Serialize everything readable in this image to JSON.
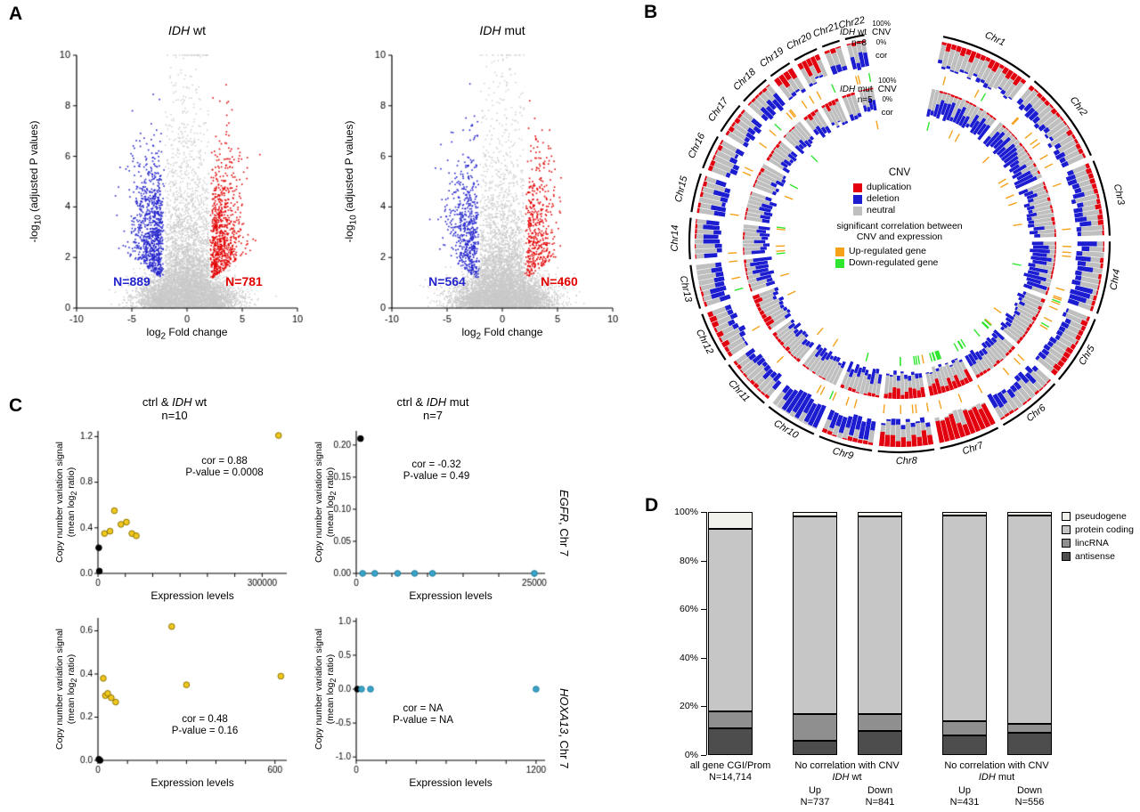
{
  "figure": {
    "panel_labels": {
      "a": "A",
      "b": "B",
      "c": "C",
      "d": "D"
    }
  },
  "colors": {
    "duplication_red": "#e3000e",
    "deletion_blue": "#1c1cd0",
    "neutral_gray": "#bfbfbf",
    "nonsig_gray": "#c9c9c9",
    "sig_blue": "#2323cc",
    "sig_red": "#e30000",
    "up_orange": "#f5a11a",
    "down_green": "#2ee62e",
    "ctrl_black": "#000000",
    "wt_yellow": "#f0c81e",
    "mut_cyan": "#3aa5c9"
  },
  "chart_data": [
    {
      "id": "volcano_idh_wt",
      "type": "scatter",
      "variant": "volcano",
      "title": {
        "gene": "IDH",
        "rest": " wt"
      },
      "xlabel": {
        "pre": "log",
        "sub": "2",
        "post": " Fold change"
      },
      "ylabel": {
        "pre": "-log",
        "sub": "10",
        "post": " (adjusted P values)"
      },
      "xlim": [
        -10,
        10
      ],
      "ylim": [
        0,
        10
      ],
      "xticks": [
        -10,
        -5,
        0,
        5,
        10
      ],
      "yticks": [
        0,
        2,
        4,
        6,
        8,
        10
      ],
      "n_background": 6500,
      "n_down": 889,
      "n_up": 781,
      "down_label": "N=889",
      "up_label": "N=781",
      "seed": 101
    },
    {
      "id": "volcano_idh_mut",
      "type": "scatter",
      "variant": "volcano",
      "title": {
        "gene": "IDH",
        "rest": " mut"
      },
      "xlabel": {
        "pre": "log",
        "sub": "2",
        "post": " Fold change"
      },
      "ylabel": {
        "pre": "-log",
        "sub": "10",
        "post": " (adjusted P values)"
      },
      "xlim": [
        -10,
        10
      ],
      "ylim": [
        0,
        10
      ],
      "xticks": [
        -10,
        -5,
        0,
        5,
        10
      ],
      "yticks": [
        0,
        2,
        4,
        6,
        8,
        10
      ],
      "n_background": 6500,
      "n_down": 564,
      "n_up": 460,
      "down_label": "N=564",
      "up_label": "N=460",
      "seed": 202
    },
    {
      "id": "circos_cnv",
      "type": "heatmap",
      "variant": "circos",
      "seed": 7,
      "tracks": [
        {
          "gene": "IDH",
          "rest": " wt",
          "n": "n=8",
          "scale_top": "100%",
          "cnv": "CNV",
          "scale_bottom": "0%",
          "cor": "cor"
        },
        {
          "gene": "IDH",
          "rest": " mut",
          "n": "n=5",
          "scale_top": "100%",
          "cnv": "CNV",
          "scale_bottom": "0%",
          "cor": "cor"
        }
      ],
      "chromosomes": [
        {
          "name": "Chr1",
          "size": 249,
          "wt_dup": 0.3,
          "wt_del": 0.1,
          "mut_dup": 0.05,
          "mut_del": 0.45
        },
        {
          "name": "Chr2",
          "size": 243,
          "wt_dup": 0.12,
          "wt_del": 0.25,
          "mut_dup": 0.05,
          "mut_del": 0.5
        },
        {
          "name": "Chr3",
          "size": 198,
          "wt_dup": 0.15,
          "wt_del": 0.3,
          "mut_dup": 0.08,
          "mut_del": 0.3
        },
        {
          "name": "Chr4",
          "size": 190,
          "wt_dup": 0.08,
          "wt_del": 0.55,
          "mut_dup": 0.05,
          "mut_del": 0.6
        },
        {
          "name": "Chr5",
          "size": 182,
          "wt_dup": 0.18,
          "wt_del": 0.2,
          "mut_dup": 0.1,
          "mut_del": 0.2
        },
        {
          "name": "Chr6",
          "size": 171,
          "wt_dup": 0.08,
          "wt_del": 0.35,
          "mut_dup": 0.08,
          "mut_del": 0.3
        },
        {
          "name": "Chr7",
          "size": 159,
          "wt_dup": 0.9,
          "wt_del": 0.02,
          "mut_dup": 0.45,
          "mut_del": 0.08
        },
        {
          "name": "Chr8",
          "size": 146,
          "wt_dup": 0.45,
          "wt_del": 0.15,
          "mut_dup": 0.3,
          "mut_del": 0.15
        },
        {
          "name": "Chr9",
          "size": 141,
          "wt_dup": 0.1,
          "wt_del": 0.55,
          "mut_dup": 0.08,
          "mut_del": 0.4
        },
        {
          "name": "Chr10",
          "size": 136,
          "wt_dup": 0.02,
          "wt_del": 0.9,
          "mut_dup": 0.05,
          "mut_del": 0.25
        },
        {
          "name": "Chr11",
          "size": 135,
          "wt_dup": 0.1,
          "wt_del": 0.3,
          "mut_dup": 0.1,
          "mut_del": 0.25
        },
        {
          "name": "Chr12",
          "size": 133,
          "wt_dup": 0.18,
          "wt_del": 0.18,
          "mut_dup": 0.2,
          "mut_del": 0.15
        },
        {
          "name": "Chr13",
          "size": 115,
          "wt_dup": 0.06,
          "wt_del": 0.4,
          "mut_dup": 0.05,
          "mut_del": 0.5
        },
        {
          "name": "Chr14",
          "size": 107,
          "wt_dup": 0.06,
          "wt_del": 0.45,
          "mut_dup": 0.05,
          "mut_del": 0.4
        },
        {
          "name": "Chr15",
          "size": 102,
          "wt_dup": 0.08,
          "wt_del": 0.35,
          "mut_dup": 0.05,
          "mut_del": 0.3
        },
        {
          "name": "Chr16",
          "size": 90,
          "wt_dup": 0.15,
          "wt_del": 0.2,
          "mut_dup": 0.1,
          "mut_del": 0.2
        },
        {
          "name": "Chr17",
          "size": 83,
          "wt_dup": 0.15,
          "wt_del": 0.3,
          "mut_dup": 0.08,
          "mut_del": 0.25
        },
        {
          "name": "Chr18",
          "size": 80,
          "wt_dup": 0.08,
          "wt_del": 0.35,
          "mut_dup": 0.05,
          "mut_del": 0.3
        },
        {
          "name": "Chr19",
          "size": 59,
          "wt_dup": 0.5,
          "wt_del": 0.15,
          "mut_dup": 0.15,
          "mut_del": 0.3
        },
        {
          "name": "Chr20",
          "size": 64,
          "wt_dup": 0.55,
          "wt_del": 0.08,
          "mut_dup": 0.2,
          "mut_del": 0.1
        },
        {
          "name": "Chr21",
          "size": 47,
          "wt_dup": 0.15,
          "wt_del": 0.25,
          "mut_dup": 0.08,
          "mut_del": 0.25
        },
        {
          "name": "Chr22",
          "size": 51,
          "wt_dup": 0.1,
          "wt_del": 0.45,
          "mut_dup": 0.05,
          "mut_del": 0.35
        }
      ],
      "cor_ticks": {
        "wt": {
          "orange": 55,
          "green": 8
        },
        "mut": {
          "orange": 20,
          "green": 28,
          "green_bias": [
            "Chr6",
            "Chr8"
          ]
        }
      },
      "legend": {
        "title": "CNV",
        "items": [
          {
            "label": "duplication",
            "color": "#e3000e"
          },
          {
            "label": "deletion",
            "color": "#1c1cd0"
          },
          {
            "label": "neutral",
            "color": "#bfbfbf"
          }
        ],
        "subtitle1": "significant correlation between",
        "subtitle2": "CNV and expression",
        "items2": [
          {
            "label": "Up-regulated gene",
            "color": "#f5a11a"
          },
          {
            "label": "Down-regulated gene",
            "color": "#2ee62e"
          }
        ]
      }
    },
    {
      "id": "egfr_ctrl_idh_wt",
      "type": "scatter",
      "title": {
        "pre": "ctrl & ",
        "gene": "IDH",
        "rest": " wt"
      },
      "subtitle": "n=10",
      "gene_label": {
        "gene": "EGFR",
        "rest": ", Chr 7"
      },
      "xlabel": "Expression levels",
      "ylabel": {
        "line1": "Copy number variation signal",
        "line2_pre": "(mean log",
        "line2_sub": "2",
        "line2_post": " ratio)"
      },
      "annotation": {
        "line1": "cor = 0.88",
        "line2": "P-value = 0.0008"
      },
      "xlim": [
        0,
        345000
      ],
      "ylim": [
        0,
        1.25
      ],
      "xticks": [
        {
          "v": 0,
          "l": "0"
        },
        {
          "v": 50000
        },
        {
          "v": 100000
        },
        {
          "v": 150000
        },
        {
          "v": 200000
        },
        {
          "v": 250000
        },
        {
          "v": 300000,
          "l": "300000"
        }
      ],
      "yticks": [
        {
          "v": 0,
          "l": "0.0"
        },
        {
          "v": 0.4,
          "l": "0.4"
        },
        {
          "v": 0.8,
          "l": "0.8"
        },
        {
          "v": 1.2,
          "l": "1.2"
        }
      ],
      "series": [
        {
          "name": "ctrl",
          "color": "#000000",
          "stroke": "#000000",
          "points": [
            [
              1500,
              0.225
            ],
            [
              2500,
              0.02
            ]
          ]
        },
        {
          "name": "IDH wt",
          "color": "#f0c81e",
          "stroke": "#8a7200",
          "points": [
            [
              12000,
              0.35
            ],
            [
              22000,
              0.37
            ],
            [
              30000,
              0.55
            ],
            [
              42000,
              0.43
            ],
            [
              52000,
              0.45
            ],
            [
              62000,
              0.35
            ],
            [
              70000,
              0.33
            ],
            [
              330000,
              1.21
            ]
          ]
        }
      ]
    },
    {
      "id": "egfr_ctrl_idh_mut",
      "type": "scatter",
      "title": {
        "pre": "ctrl & ",
        "gene": "IDH",
        "rest": " mut"
      },
      "subtitle": "n=7",
      "gene_label": {
        "gene": "EGFR",
        "rest": ", Chr 7"
      },
      "xlabel": "Expression levels",
      "ylabel": {
        "line1": "Copy number variation signal",
        "line2_pre": "(mean log",
        "line2_sub": "2",
        "line2_post": " ratio)"
      },
      "annotation": {
        "line1": "cor = -0.32",
        "line2": "P-value = 0.49"
      },
      "xlim": [
        0,
        26500
      ],
      "ylim": [
        0,
        0.222
      ],
      "xticks": [
        {
          "v": 0,
          "l": "0"
        },
        {
          "v": 5000
        },
        {
          "v": 10000
        },
        {
          "v": 15000
        },
        {
          "v": 20000
        },
        {
          "v": 25000,
          "l": "25000"
        }
      ],
      "yticks": [
        {
          "v": 0,
          "l": "0.00"
        },
        {
          "v": 0.05,
          "l": "0.05"
        },
        {
          "v": 0.1,
          "l": "0.10"
        },
        {
          "v": 0.15,
          "l": "0.15"
        },
        {
          "v": 0.2,
          "l": "0.20"
        }
      ],
      "series": [
        {
          "name": "ctrl",
          "color": "#000000",
          "stroke": "#000000",
          "points": [
            [
              600,
              0.21
            ]
          ]
        },
        {
          "name": "IDH mut",
          "color": "#3aa5c9",
          "stroke": "#1b7a9a",
          "points": [
            [
              900,
              0
            ],
            [
              2600,
              0
            ],
            [
              5800,
              0
            ],
            [
              8200,
              0
            ],
            [
              10700,
              0
            ],
            [
              25000,
              0
            ]
          ]
        }
      ]
    },
    {
      "id": "hoxa13_ctrl_idh_wt",
      "type": "scatter",
      "title": null,
      "subtitle": null,
      "gene_label": {
        "gene": "HOXA13",
        "rest": ", Chr 7"
      },
      "xlabel": "Expression levels",
      "ylabel": {
        "line1": "Copy number variation signal",
        "line2_pre": "(mean log",
        "line2_sub": "2",
        "line2_post": " ratio)"
      },
      "annotation": {
        "line1": "cor = 0.48",
        "line2": "P-value = 0.16"
      },
      "xlim": [
        0,
        640
      ],
      "ylim": [
        0,
        0.66
      ],
      "xticks": [
        {
          "v": 0,
          "l": "0"
        },
        {
          "v": 100
        },
        {
          "v": 200
        },
        {
          "v": 300
        },
        {
          "v": 400
        },
        {
          "v": 500
        },
        {
          "v": 600,
          "l": "600"
        }
      ],
      "yticks": [
        {
          "v": 0,
          "l": "0.0"
        },
        {
          "v": 0.2,
          "l": "0.2"
        },
        {
          "v": 0.4,
          "l": "0.4"
        },
        {
          "v": 0.6,
          "l": "0.6"
        }
      ],
      "series": [
        {
          "name": "ctrl",
          "color": "#000000",
          "stroke": "#000000",
          "points": [
            [
              3,
              0.005
            ],
            [
              7,
              0.0
            ]
          ]
        },
        {
          "name": "IDH wt",
          "color": "#f0c81e",
          "stroke": "#8a7200",
          "points": [
            [
              18,
              0.38
            ],
            [
              25,
              0.3
            ],
            [
              33,
              0.31
            ],
            [
              45,
              0.29
            ],
            [
              60,
              0.27
            ],
            [
              250,
              0.62
            ],
            [
              300,
              0.35
            ],
            [
              620,
              0.39
            ]
          ]
        }
      ]
    },
    {
      "id": "hoxa13_ctrl_idh_mut",
      "type": "scatter",
      "title": null,
      "subtitle": null,
      "gene_label": {
        "gene": "HOXA13",
        "rest": ", Chr 7"
      },
      "xlabel": "Expression levels",
      "ylabel": {
        "line1": "Copy number variation signal",
        "line2_pre": "(mean log",
        "line2_sub": "2",
        "line2_post": " ratio)"
      },
      "annotation": {
        "line1": "cor = NA",
        "line2": "P-value = NA"
      },
      "xlim": [
        0,
        1260
      ],
      "ylim": [
        -1.05,
        1.05
      ],
      "xticks": [
        {
          "v": 0,
          "l": "0"
        },
        {
          "v": 200
        },
        {
          "v": 400
        },
        {
          "v": 600
        },
        {
          "v": 800
        },
        {
          "v": 1000
        },
        {
          "v": 1200,
          "l": "1200"
        }
      ],
      "yticks": [
        {
          "v": -1,
          "l": "-1.0"
        },
        {
          "v": -0.5,
          "l": "-0.5"
        },
        {
          "v": 0,
          "l": "0.0"
        },
        {
          "v": 0.5,
          "l": "0.5"
        },
        {
          "v": 1,
          "l": "1.0"
        }
      ],
      "series": [
        {
          "name": "ctrl",
          "color": "#000000",
          "stroke": "#000000",
          "points": [
            [
              8,
              0
            ]
          ]
        },
        {
          "name": "IDH mut",
          "color": "#3aa5c9",
          "stroke": "#1b7a9a",
          "points": [
            [
              35,
              0
            ],
            [
              95,
              0
            ],
            [
              1200,
              0
            ]
          ]
        }
      ]
    },
    {
      "id": "gene_biotype_bars",
      "type": "bar",
      "stacked": true,
      "unit": "percent",
      "segment_order": [
        "antisense",
        "lincRNA",
        "protein coding",
        "pseudogene"
      ],
      "segment_colors": [
        "#4d4d4d",
        "#8f8f8f",
        "#c6c6c6",
        "#f2f2ec"
      ],
      "legend_order": [
        "pseudogene",
        "protein coding",
        "lincRNA",
        "antisense"
      ],
      "legend_colors": [
        "#f2f2ec",
        "#c6c6c6",
        "#8f8f8f",
        "#4d4d4d"
      ],
      "yticks": [
        "0%",
        "20%",
        "40%",
        "60%",
        "80%",
        "100%"
      ],
      "ylim": [
        0,
        100
      ],
      "bars": [
        {
          "id": "all",
          "label1": "all gene CGI/Prom",
          "label2": "N=14,714",
          "segments": [
            11,
            7,
            75,
            7
          ]
        },
        {
          "id": "wt_up",
          "sub": "Up",
          "n_label": "N=737",
          "segments": [
            6,
            11,
            81,
            2
          ]
        },
        {
          "id": "wt_down",
          "sub": "Down",
          "n_label": "N=841",
          "segments": [
            10,
            7,
            81,
            2
          ]
        },
        {
          "id": "mut_up",
          "sub": "Up",
          "n_label": "N=431",
          "segments": [
            8,
            6,
            84.5,
            1.5
          ]
        },
        {
          "id": "mut_down",
          "sub": "Down",
          "n_label": "N=556",
          "segments": [
            9,
            4,
            85.5,
            1.5
          ]
        }
      ],
      "groups": [
        {
          "header": "No correlation with CNV",
          "gene": "IDH",
          "rest": " wt"
        },
        {
          "header": "No correlation with CNV",
          "gene": "IDH",
          "rest": " mut"
        }
      ]
    }
  ]
}
